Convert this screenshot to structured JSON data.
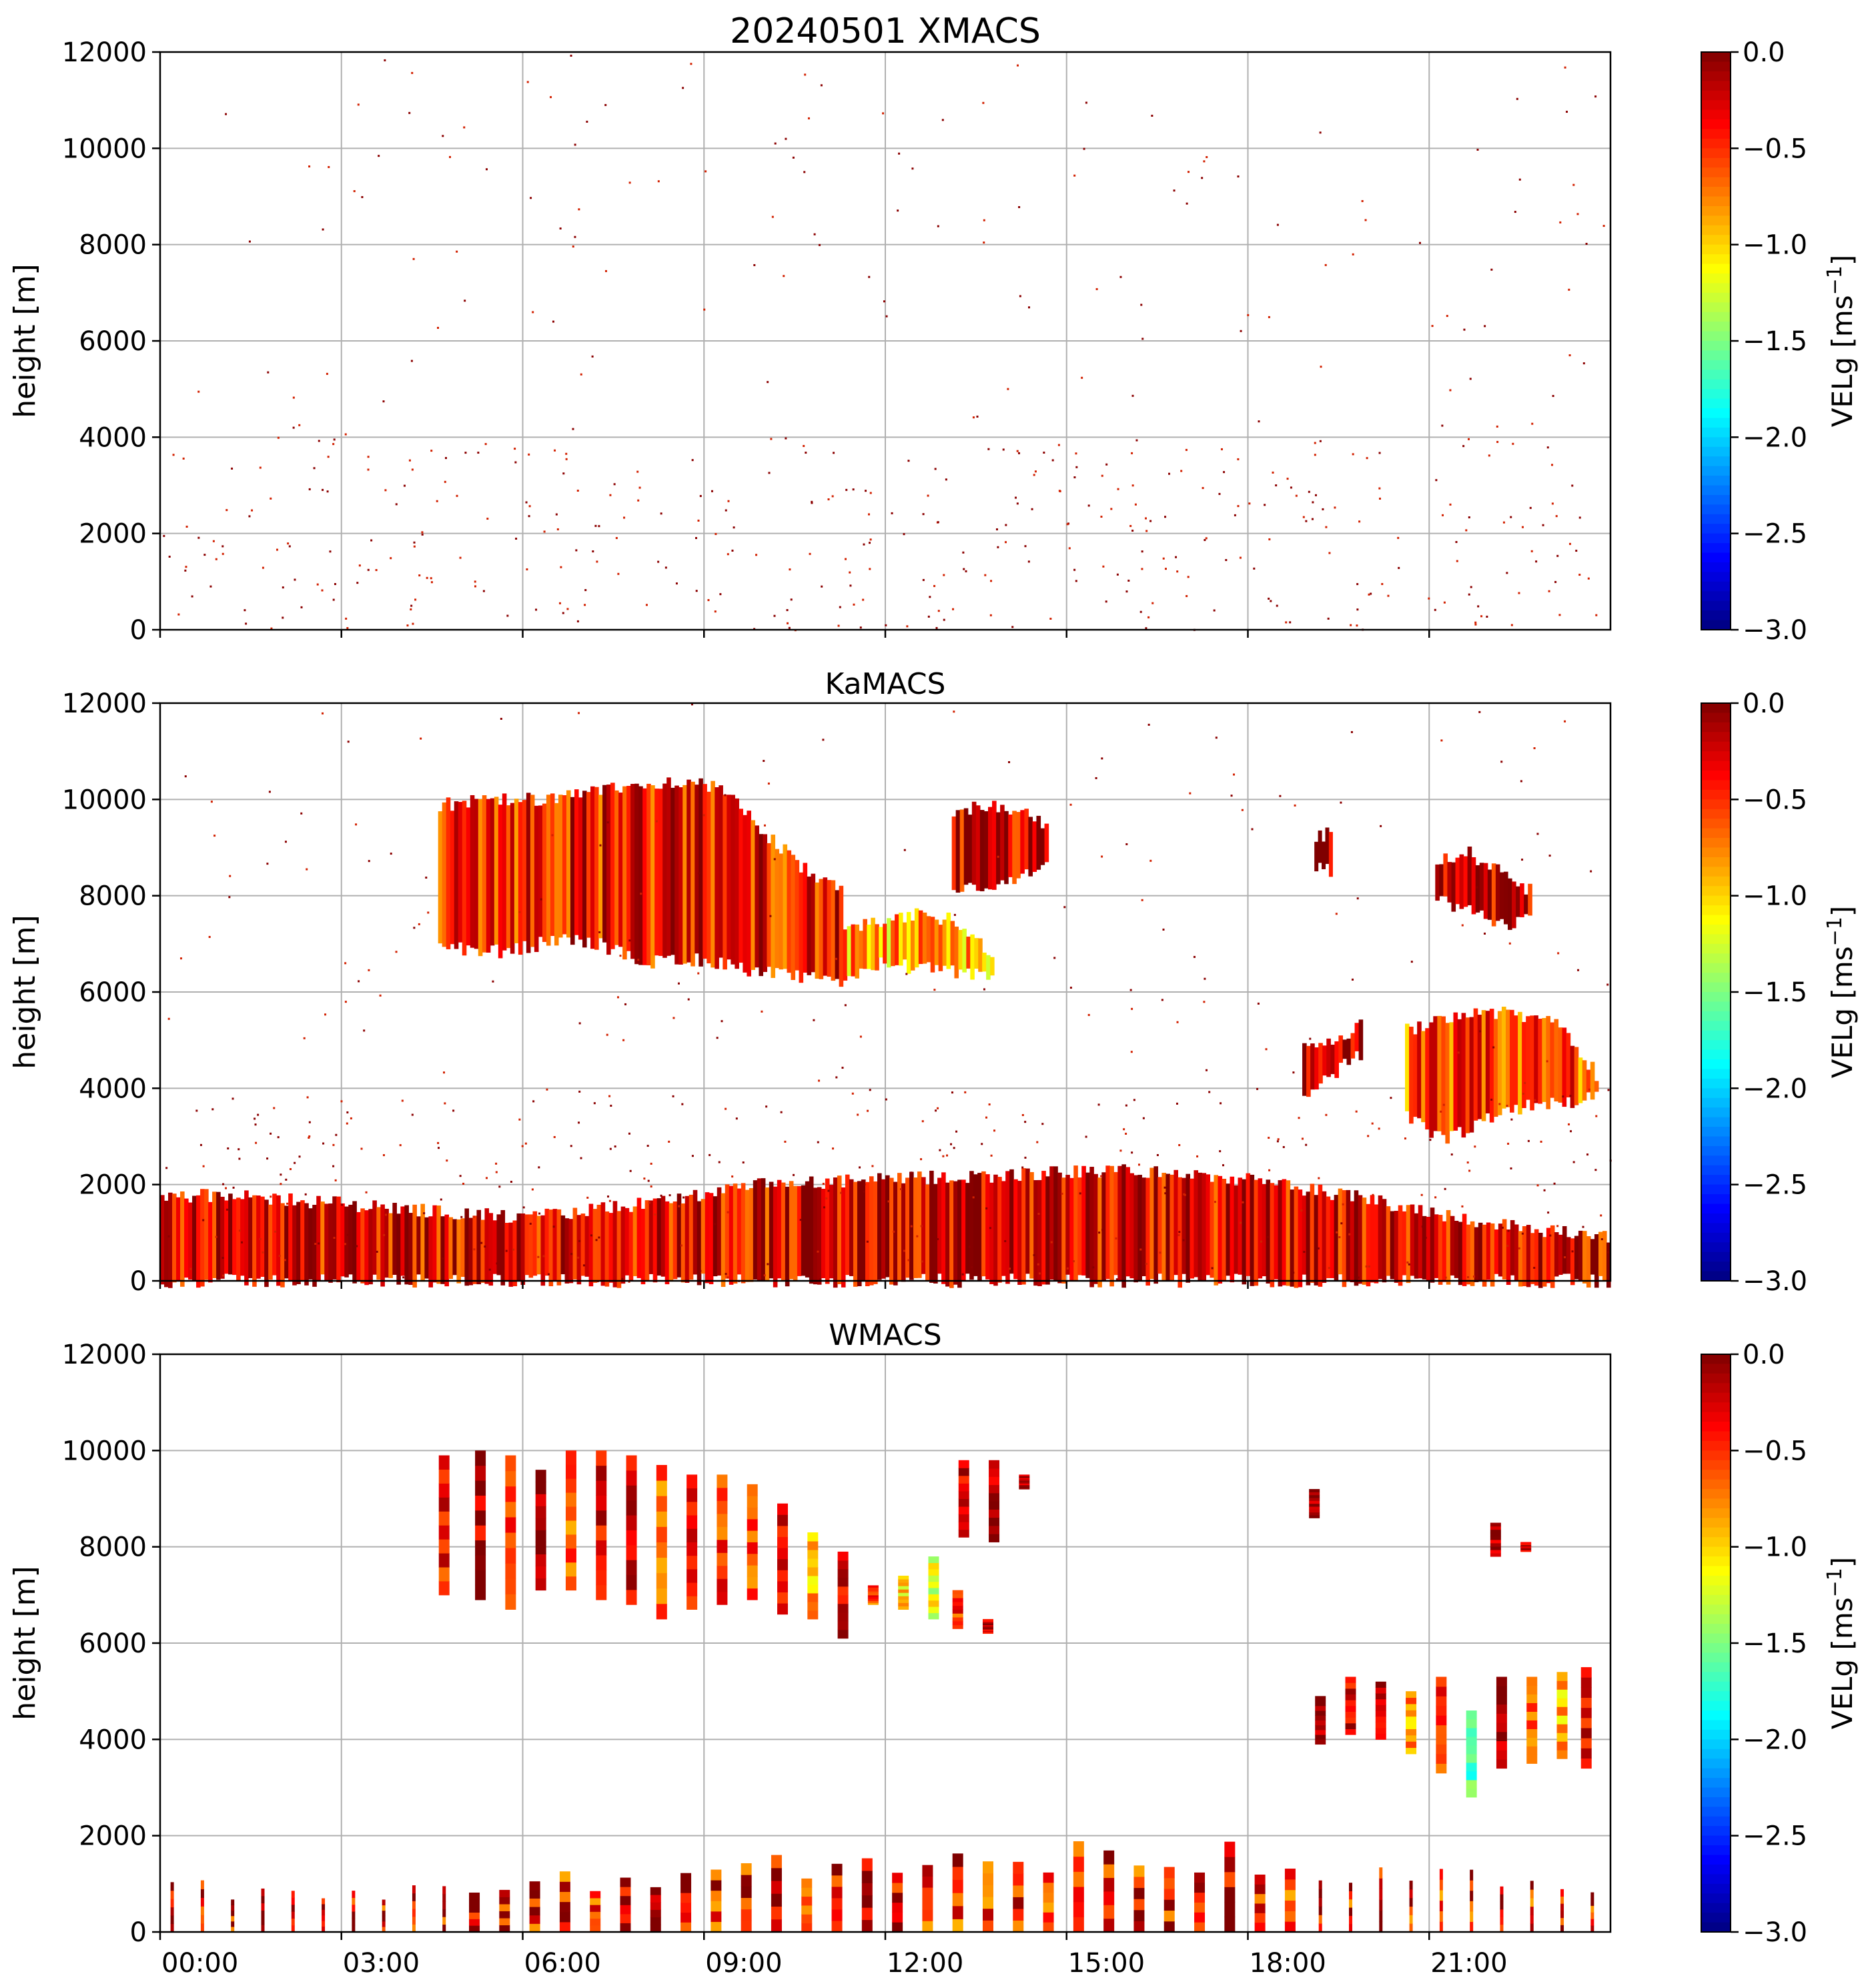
{
  "figure_title": "20240501 XMACS",
  "colormap_stops": [
    "#00007f",
    "#0000ff",
    "#007fff",
    "#00ffff",
    "#7fff7f",
    "#ffff00",
    "#ff7f00",
    "#ff0000",
    "#7f0000"
  ],
  "chart_data": [
    {
      "type": "heatmap",
      "title": "20240501 XMACS",
      "ylabel": "height [m]",
      "xlabel": "",
      "xlim": [
        0,
        24
      ],
      "ylim": [
        0,
        12000
      ],
      "yticks": [
        0,
        2000,
        4000,
        6000,
        8000,
        10000,
        12000
      ],
      "ytick_labels": [
        "0",
        "2000",
        "4000",
        "6000",
        "8000",
        "10000",
        "12000"
      ],
      "xtick_values": [
        0,
        3,
        6,
        9,
        12,
        15,
        18,
        21
      ],
      "xtick_labels": [],
      "grid": true,
      "colorbar": {
        "label": "VELg [ms",
        "label_sup": "−1",
        "label_end": "]",
        "range": [
          -3.0,
          0.0
        ],
        "ticks": [
          "0.0",
          "−0.5",
          "−1.0",
          "−1.5",
          "−2.0",
          "−2.5",
          "−3.0"
        ]
      },
      "echoes": []
    },
    {
      "type": "heatmap",
      "title": "KaMACS",
      "ylabel": "height [m]",
      "xlabel": "",
      "xlim": [
        0,
        24
      ],
      "ylim": [
        0,
        12000
      ],
      "yticks": [
        0,
        2000,
        4000,
        6000,
        8000,
        10000,
        12000
      ],
      "ytick_labels": [
        "0",
        "2000",
        "4000",
        "6000",
        "8000",
        "10000",
        "12000"
      ],
      "xtick_values": [
        0,
        3,
        6,
        9,
        12,
        15,
        18,
        21
      ],
      "xtick_labels": [],
      "grid": true,
      "colorbar": {
        "label": "VELg [ms",
        "label_sup": "−1",
        "label_end": "]",
        "range": [
          -3.0,
          0.0
        ],
        "ticks": [
          "0.0",
          "−0.5",
          "−1.0",
          "−1.5",
          "−2.0",
          "−2.5",
          "−3.0"
        ]
      },
      "echoes": [
        {
          "name": "upper-cloud",
          "t_start": 4.6,
          "t_end": 11.3,
          "bottom": [
            7000,
            6800,
            6900,
            7100,
            7000,
            6600,
            6700,
            6600,
            6400,
            6300,
            6200
          ],
          "top": [
            9900,
            9950,
            10000,
            10000,
            10200,
            10300,
            10400,
            10200,
            9400,
            8600,
            8100
          ],
          "mean_velocity": -0.4
        },
        {
          "name": "upper-cloud-tail",
          "t_start": 11.3,
          "t_end": 13.8,
          "bottom": [
            6300,
            6600,
            6500,
            6400,
            6300
          ],
          "top": [
            7400,
            7400,
            7600,
            7500,
            6800
          ],
          "mean_velocity": -0.9
        },
        {
          "name": "isolated-cirrus",
          "t_start": 13.1,
          "t_end": 14.7,
          "bottom": [
            8200,
            8100,
            8300,
            8600
          ],
          "top": [
            9700,
            9900,
            9800,
            9500
          ],
          "mean_velocity": -0.3
        },
        {
          "name": "cell-19h",
          "t_start": 19.1,
          "t_end": 19.4,
          "bottom": [
            8600,
            8500
          ],
          "top": [
            9200,
            9300
          ],
          "mean_velocity": -0.1
        },
        {
          "name": "cell-22h",
          "t_start": 21.1,
          "t_end": 22.7,
          "bottom": [
            7900,
            7700,
            7400,
            7500
          ],
          "top": [
            8700,
            8900,
            8500,
            8100
          ],
          "mean_velocity": -0.2
        },
        {
          "name": "mid-layer-a",
          "t_start": 18.9,
          "t_end": 19.9,
          "bottom": [
            3900,
            4300,
            4700
          ],
          "top": [
            4800,
            5000,
            5300
          ],
          "mean_velocity": -0.2
        },
        {
          "name": "mid-layer-b",
          "t_start": 20.6,
          "t_end": 23.8,
          "bottom": [
            3400,
            2900,
            3300,
            3600,
            3700,
            3800
          ],
          "top": [
            5200,
            5500,
            5600,
            5500,
            5400,
            4300
          ],
          "mean_velocity": -0.6
        },
        {
          "name": "boundary-layer",
          "t_start": 0.0,
          "t_end": 24.0,
          "bottom": [
            0,
            0,
            0,
            0,
            0,
            0,
            0,
            0,
            0,
            0,
            0,
            0,
            0
          ],
          "top": [
            1800,
            1700,
            1500,
            1300,
            1600,
            2000,
            2100,
            2200,
            2300,
            2100,
            1700,
            1200,
            900
          ],
          "mean_velocity": -0.3
        }
      ]
    },
    {
      "type": "heatmap",
      "title": "WMACS",
      "ylabel": "height [m]",
      "xlabel": "",
      "xlim": [
        0,
        24
      ],
      "ylim": [
        0,
        12000
      ],
      "yticks": [
        0,
        2000,
        4000,
        6000,
        8000,
        10000,
        12000
      ],
      "ytick_labels": [
        "0",
        "2000",
        "4000",
        "6000",
        "8000",
        "10000",
        "12000"
      ],
      "xtick_values": [
        0,
        3,
        6,
        9,
        12,
        15,
        18,
        21
      ],
      "xtick_labels": [
        "00:00",
        "03:00",
        "06:00",
        "09:00",
        "12:00",
        "15:00",
        "18:00",
        "21:00"
      ],
      "grid": true,
      "colorbar": {
        "label": "VELg [ms",
        "label_sup": "−1",
        "label_end": "]",
        "range": [
          -3.0,
          0.0
        ],
        "ticks": [
          "0.0",
          "−0.5",
          "−1.0",
          "−1.5",
          "−2.0",
          "−2.5",
          "−3.0"
        ]
      },
      "echo_stripes": [
        {
          "t": 4.7,
          "bottom": 7000,
          "top": 9900,
          "v": -0.4
        },
        {
          "t": 5.3,
          "bottom": 6900,
          "top": 10000,
          "v": -0.2
        },
        {
          "t": 5.8,
          "bottom": 6700,
          "top": 9900,
          "v": -0.5
        },
        {
          "t": 6.3,
          "bottom": 7100,
          "top": 9600,
          "v": -0.1
        },
        {
          "t": 6.8,
          "bottom": 7100,
          "top": 10000,
          "v": -0.6
        },
        {
          "t": 7.3,
          "bottom": 6900,
          "top": 10000,
          "v": -0.3
        },
        {
          "t": 7.8,
          "bottom": 6800,
          "top": 9900,
          "v": -0.2
        },
        {
          "t": 8.3,
          "bottom": 6500,
          "top": 9700,
          "v": -0.7
        },
        {
          "t": 8.8,
          "bottom": 6700,
          "top": 9500,
          "v": -0.3
        },
        {
          "t": 9.3,
          "bottom": 6800,
          "top": 9500,
          "v": -0.5
        },
        {
          "t": 9.8,
          "bottom": 6900,
          "top": 9300,
          "v": -0.6
        },
        {
          "t": 10.3,
          "bottom": 6600,
          "top": 8900,
          "v": -0.4
        },
        {
          "t": 10.8,
          "bottom": 6500,
          "top": 8300,
          "v": -0.9
        },
        {
          "t": 11.3,
          "bottom": 6100,
          "top": 7900,
          "v": -0.3
        },
        {
          "t": 11.8,
          "bottom": 6800,
          "top": 7200,
          "v": -0.6
        },
        {
          "t": 12.3,
          "bottom": 6700,
          "top": 7400,
          "v": -1.0
        },
        {
          "t": 12.8,
          "bottom": 6500,
          "top": 7800,
          "v": -1.2
        },
        {
          "t": 13.2,
          "bottom": 6300,
          "top": 7100,
          "v": -0.5
        },
        {
          "t": 13.7,
          "bottom": 6200,
          "top": 6500,
          "v": -0.2
        },
        {
          "t": 13.3,
          "bottom": 8200,
          "top": 9800,
          "v": -0.3
        },
        {
          "t": 13.8,
          "bottom": 8100,
          "top": 9800,
          "v": -0.2
        },
        {
          "t": 14.3,
          "bottom": 9200,
          "top": 9500,
          "v": -0.1
        },
        {
          "t": 19.1,
          "bottom": 8600,
          "top": 9200,
          "v": -0.1
        },
        {
          "t": 22.1,
          "bottom": 7800,
          "top": 8500,
          "v": -0.1
        },
        {
          "t": 22.6,
          "bottom": 7900,
          "top": 8100,
          "v": -0.2
        },
        {
          "t": 19.2,
          "bottom": 3900,
          "top": 4900,
          "v": -0.1
        },
        {
          "t": 19.7,
          "bottom": 4100,
          "top": 5300,
          "v": -0.3
        },
        {
          "t": 20.2,
          "bottom": 4000,
          "top": 5200,
          "v": -0.2
        },
        {
          "t": 20.7,
          "bottom": 3700,
          "top": 5000,
          "v": -0.8
        },
        {
          "t": 21.2,
          "bottom": 3300,
          "top": 5300,
          "v": -0.5
        },
        {
          "t": 21.7,
          "bottom": 2800,
          "top": 4600,
          "v": -1.6
        },
        {
          "t": 22.2,
          "bottom": 3400,
          "top": 5300,
          "v": -0.2
        },
        {
          "t": 22.7,
          "bottom": 3500,
          "top": 5300,
          "v": -0.7
        },
        {
          "t": 23.2,
          "bottom": 3600,
          "top": 5400,
          "v": -0.9
        },
        {
          "t": 23.6,
          "bottom": 3400,
          "top": 5500,
          "v": -0.3
        }
      ],
      "boundary_layer": {
        "t_start": 0.0,
        "t_end": 24.0,
        "top": [
          1200,
          1000,
          1000,
          1200,
          1400,
          1600,
          1800,
          1900,
          2000,
          1900,
          1600,
          1300,
          900
        ],
        "mean_velocity": -0.3
      }
    }
  ]
}
